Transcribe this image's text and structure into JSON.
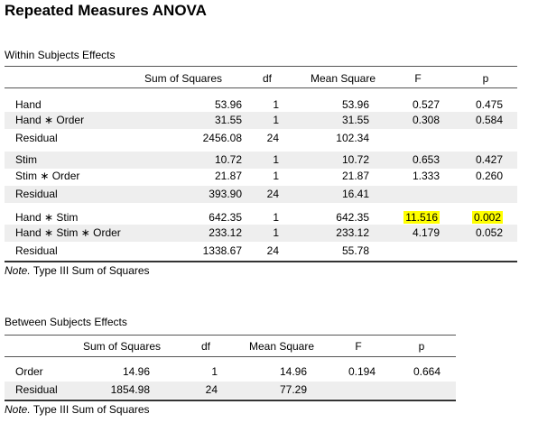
{
  "title": "Repeated Measures ANOVA",
  "within": {
    "caption": "Within Subjects Effects",
    "headers": [
      "",
      "Sum of Squares",
      "df",
      "Mean Square",
      "F",
      "p"
    ],
    "rows": [
      [
        "Hand",
        "53.96",
        "1",
        "53.96",
        "0.527",
        "0.475"
      ],
      [
        "Hand ∗ Order",
        "31.55",
        "1",
        "31.55",
        "0.308",
        "0.584"
      ],
      [
        "Residual",
        "2456.08",
        "24",
        "102.34",
        "",
        ""
      ],
      [
        "Stim",
        "10.72",
        "1",
        "10.72",
        "0.653",
        "0.427"
      ],
      [
        "Stim ∗ Order",
        "21.87",
        "1",
        "21.87",
        "1.333",
        "0.260"
      ],
      [
        "Residual",
        "393.90",
        "24",
        "16.41",
        "",
        ""
      ],
      [
        "Hand ∗ Stim",
        "642.35",
        "1",
        "642.35",
        "11.516",
        "0.002"
      ],
      [
        "Hand ∗ Stim ∗ Order",
        "233.12",
        "1",
        "233.12",
        "4.179",
        "0.052"
      ],
      [
        "Residual",
        "1338.67",
        "24",
        "55.78",
        "",
        ""
      ]
    ],
    "note_label": "Note.",
    "note_text": "Type III Sum of Squares"
  },
  "between": {
    "caption": "Between Subjects Effects",
    "headers": [
      "",
      "Sum of Squares",
      "df",
      "Mean Square",
      "F",
      "p"
    ],
    "rows": [
      [
        "Order",
        "14.96",
        "1",
        "14.96",
        "0.194",
        "0.664"
      ],
      [
        "Residual",
        "1854.98",
        "24",
        "77.29",
        "",
        ""
      ]
    ],
    "note_label": "Note.",
    "note_text": "Type III Sum of Squares"
  }
}
